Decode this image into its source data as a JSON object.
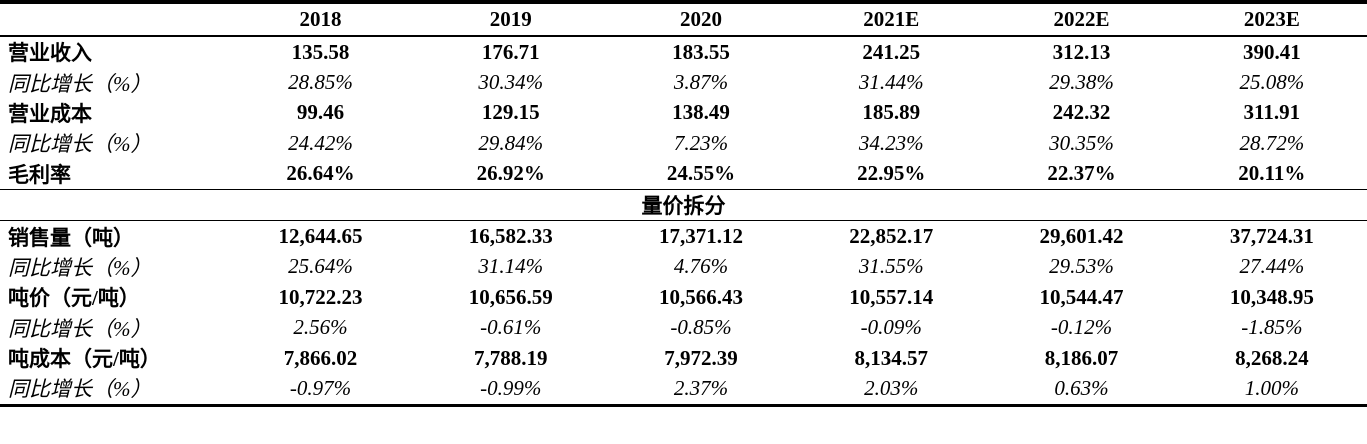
{
  "years": [
    "2018",
    "2019",
    "2020",
    "2021E",
    "2022E",
    "2023E"
  ],
  "rows_top": [
    {
      "label": "营业收入",
      "values": [
        "135.58",
        "176.71",
        "183.55",
        "241.25",
        "312.13",
        "390.41"
      ]
    },
    {
      "label": "同比增长（%）",
      "values": [
        "28.85%",
        "30.34%",
        "3.87%",
        "31.44%",
        "29.38%",
        "25.08%"
      ]
    },
    {
      "label": "营业成本",
      "values": [
        "99.46",
        "129.15",
        "138.49",
        "185.89",
        "242.32",
        "311.91"
      ]
    },
    {
      "label": "同比增长（%）",
      "values": [
        "24.42%",
        "29.84%",
        "7.23%",
        "34.23%",
        "30.35%",
        "28.72%"
      ]
    },
    {
      "label": "毛利率",
      "values": [
        "26.64%",
        "26.92%",
        "24.55%",
        "22.95%",
        "22.37%",
        "20.11%"
      ]
    }
  ],
  "section_title": "量价拆分",
  "rows_bottom": [
    {
      "label": "销售量（吨）",
      "values": [
        "12,644.65",
        "16,582.33",
        "17,371.12",
        "22,852.17",
        "29,601.42",
        "37,724.31"
      ]
    },
    {
      "label": "同比增长（%）",
      "values": [
        "25.64%",
        "31.14%",
        "4.76%",
        "31.55%",
        "29.53%",
        "27.44%"
      ]
    },
    {
      "label": "吨价（元/吨）",
      "values": [
        "10,722.23",
        "10,656.59",
        "10,566.43",
        "10,557.14",
        "10,544.47",
        "10,348.95"
      ]
    },
    {
      "label": "同比增长（%）",
      "values": [
        "2.56%",
        "-0.61%",
        "-0.85%",
        "-0.09%",
        "-0.12%",
        "-1.85%"
      ]
    },
    {
      "label": "吨成本（元/吨）",
      "values": [
        "7,866.02",
        "7,788.19",
        "7,972.39",
        "8,134.57",
        "8,186.07",
        "8,268.24"
      ]
    },
    {
      "label": "同比增长（%）",
      "values": [
        "-0.97%",
        "-0.99%",
        "2.37%",
        "2.03%",
        "0.63%",
        "1.00%"
      ]
    }
  ]
}
